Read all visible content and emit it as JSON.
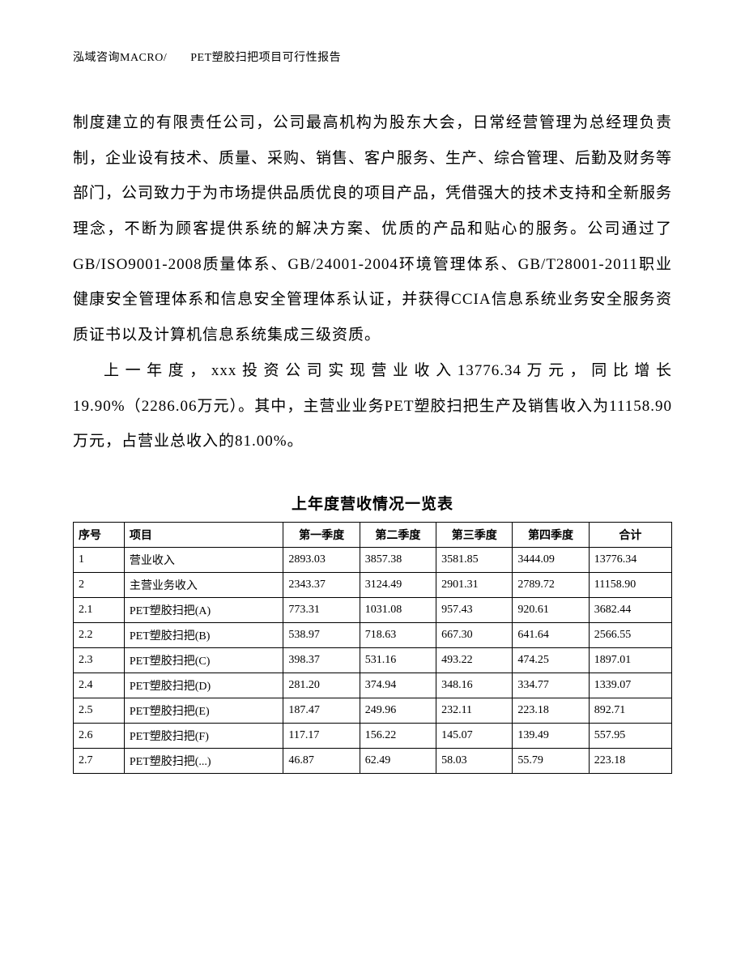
{
  "header": {
    "text": "泓域咨询MACRO/　　PET塑胶扫把项目可行性报告"
  },
  "paragraphs": {
    "p1": "制度建立的有限责任公司，公司最高机构为股东大会，日常经营管理为总经理负责制，企业设有技术、质量、采购、销售、客户服务、生产、综合管理、后勤及财务等部门，公司致力于为市场提供品质优良的项目产品，凭借强大的技术支持和全新服务理念，不断为顾客提供系统的解决方案、优质的产品和贴心的服务。公司通过了GB/ISO9001-2008质量体系、GB/24001-2004环境管理体系、GB/T28001-2011职业健康安全管理体系和信息安全管理体系认证，并获得CCIA信息系统业务安全服务资质证书以及计算机信息系统集成三级资质。",
    "p2": "上一年度，xxx投资公司实现营业收入13776.34万元，同比增长19.90%（2286.06万元）。其中，主营业业务PET塑胶扫把生产及销售收入为11158.90万元，占营业总收入的81.00%。"
  },
  "table": {
    "title": "上年度营收情况一览表",
    "columns": {
      "seq": "序号",
      "item": "项目",
      "q1": "第一季度",
      "q2": "第二季度",
      "q3": "第三季度",
      "q4": "第四季度",
      "total": "合计"
    },
    "rows": [
      {
        "seq": "1",
        "item": "营业收入",
        "q1": "2893.03",
        "q2": "3857.38",
        "q3": "3581.85",
        "q4": "3444.09",
        "total": "13776.34"
      },
      {
        "seq": "2",
        "item": "主营业务收入",
        "q1": "2343.37",
        "q2": "3124.49",
        "q3": "2901.31",
        "q4": "2789.72",
        "total": "11158.90"
      },
      {
        "seq": "2.1",
        "item": "PET塑胶扫把(A)",
        "q1": "773.31",
        "q2": "1031.08",
        "q3": "957.43",
        "q4": "920.61",
        "total": "3682.44"
      },
      {
        "seq": "2.2",
        "item": "PET塑胶扫把(B)",
        "q1": "538.97",
        "q2": "718.63",
        "q3": "667.30",
        "q4": "641.64",
        "total": "2566.55"
      },
      {
        "seq": "2.3",
        "item": "PET塑胶扫把(C)",
        "q1": "398.37",
        "q2": "531.16",
        "q3": "493.22",
        "q4": "474.25",
        "total": "1897.01"
      },
      {
        "seq": "2.4",
        "item": "PET塑胶扫把(D)",
        "q1": "281.20",
        "q2": "374.94",
        "q3": "348.16",
        "q4": "334.77",
        "total": "1339.07"
      },
      {
        "seq": "2.5",
        "item": "PET塑胶扫把(E)",
        "q1": "187.47",
        "q2": "249.96",
        "q3": "232.11",
        "q4": "223.18",
        "total": "892.71"
      },
      {
        "seq": "2.6",
        "item": "PET塑胶扫把(F)",
        "q1": "117.17",
        "q2": "156.22",
        "q3": "145.07",
        "q4": "139.49",
        "total": "557.95"
      },
      {
        "seq": "2.7",
        "item": "PET塑胶扫把(...)",
        "q1": "46.87",
        "q2": "62.49",
        "q3": "58.03",
        "q4": "55.79",
        "total": "223.18"
      }
    ]
  }
}
